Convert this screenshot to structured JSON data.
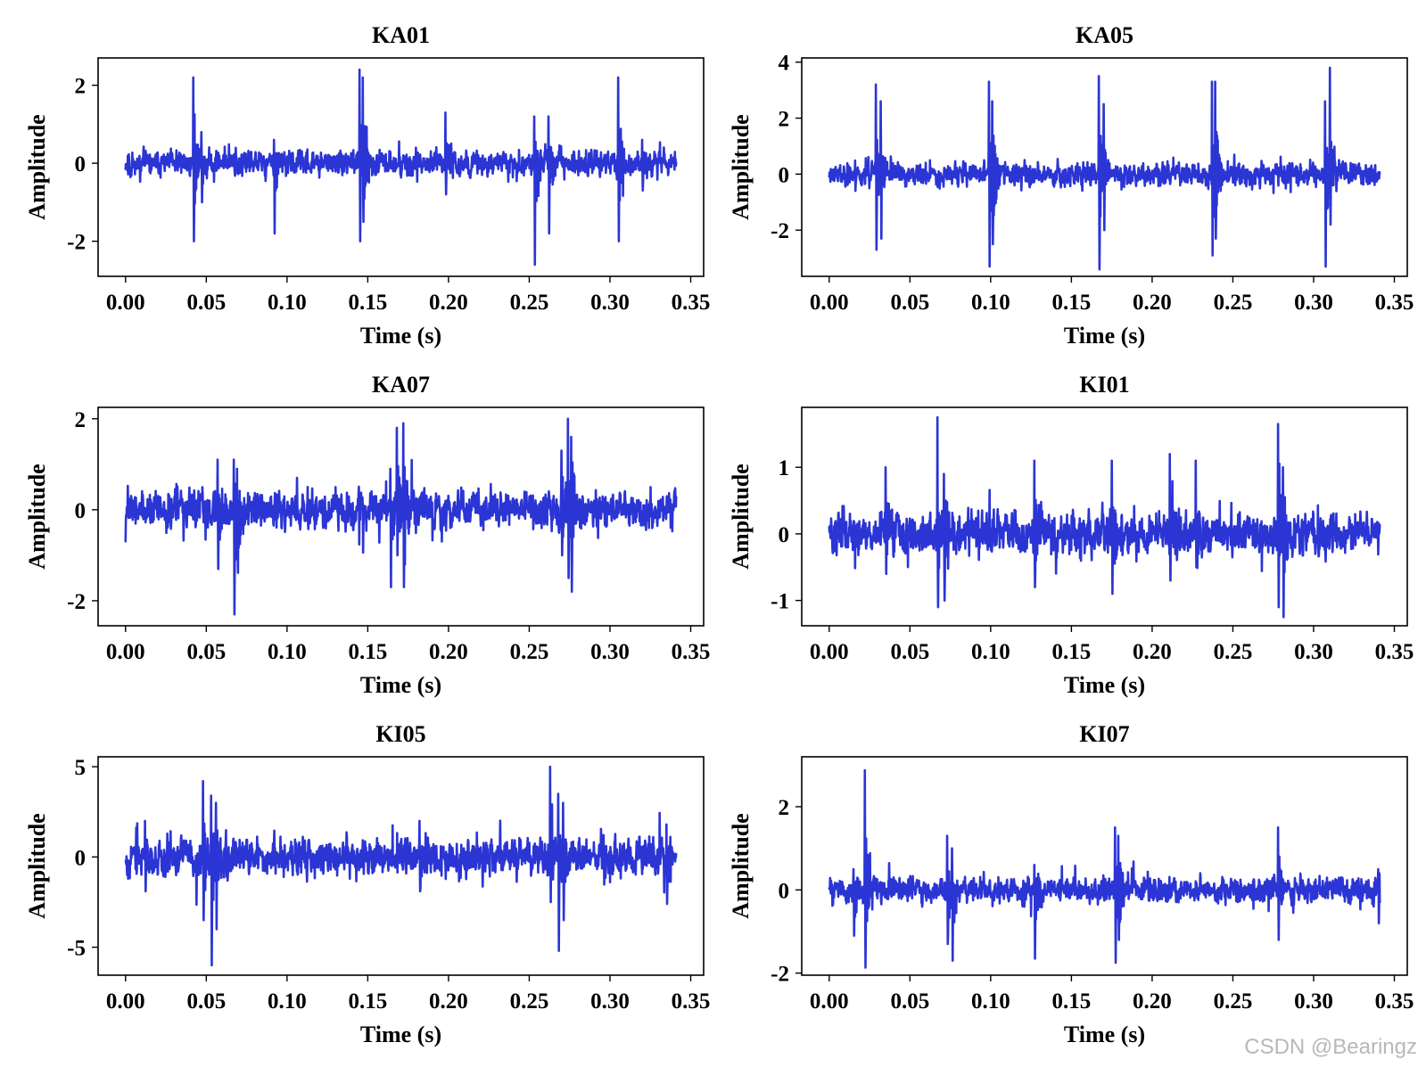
{
  "chart_data": [
    {
      "type": "line",
      "title": "KA01",
      "xlabel": "Time (s)",
      "ylabel": "Amplitude",
      "xlim": [
        -0.017,
        0.358
      ],
      "ylim": [
        -2.9,
        2.7
      ],
      "xticks": [
        0.0,
        0.05,
        0.1,
        0.15,
        0.2,
        0.25,
        0.3,
        0.35
      ],
      "xtick_labels": [
        "0.00",
        "0.05",
        "0.10",
        "0.15",
        "0.20",
        "0.25",
        "0.30",
        "0.35"
      ],
      "yticks": [
        -2,
        0,
        2
      ],
      "ytick_labels": [
        "-2",
        "0",
        "2"
      ],
      "color": "#2b35d4",
      "duration": 0.341,
      "noise": 0.17,
      "seed": 11,
      "spikes": [
        [
          0.042,
          2.2,
          -2.0
        ],
        [
          0.047,
          0.8,
          -1.0
        ],
        [
          0.092,
          0.6,
          -1.8
        ],
        [
          0.145,
          2.4,
          -2.0
        ],
        [
          0.147,
          2.2,
          -1.5
        ],
        [
          0.198,
          1.3,
          -0.8
        ],
        [
          0.253,
          1.2,
          -2.6
        ],
        [
          0.262,
          1.2,
          -1.8
        ],
        [
          0.305,
          2.2,
          -2.0
        ],
        [
          0.32,
          0.6,
          -0.7
        ]
      ]
    },
    {
      "type": "line",
      "title": "KA05",
      "xlabel": "Time (s)",
      "ylabel": "Amplitude",
      "xlim": [
        -0.017,
        0.358
      ],
      "ylim": [
        -3.65,
        4.15
      ],
      "xticks": [
        0.0,
        0.05,
        0.1,
        0.15,
        0.2,
        0.25,
        0.3,
        0.35
      ],
      "xtick_labels": [
        "0.00",
        "0.05",
        "0.10",
        "0.15",
        "0.20",
        "0.25",
        "0.30",
        "0.35"
      ],
      "yticks": [
        -2,
        0,
        2,
        4
      ],
      "ytick_labels": [
        "-2",
        "0",
        "2",
        "4"
      ],
      "color": "#2b35d4",
      "duration": 0.341,
      "noise": 0.22,
      "seed": 23,
      "spikes": [
        [
          0.029,
          3.2,
          -2.7
        ],
        [
          0.032,
          2.6,
          -2.3
        ],
        [
          0.099,
          3.3,
          -3.3
        ],
        [
          0.101,
          2.6,
          -2.5
        ],
        [
          0.167,
          3.5,
          -3.4
        ],
        [
          0.17,
          2.5,
          -2.0
        ],
        [
          0.237,
          3.3,
          -2.9
        ],
        [
          0.239,
          3.3,
          -2.3
        ],
        [
          0.307,
          2.6,
          -3.3
        ],
        [
          0.31,
          3.8,
          -1.8
        ]
      ]
    },
    {
      "type": "line",
      "title": "KA07",
      "xlabel": "Time (s)",
      "ylabel": "Amplitude",
      "xlim": [
        -0.017,
        0.358
      ],
      "ylim": [
        -2.55,
        2.25
      ],
      "xticks": [
        0.0,
        0.05,
        0.1,
        0.15,
        0.2,
        0.25,
        0.3,
        0.35
      ],
      "xtick_labels": [
        "0.00",
        "0.05",
        "0.10",
        "0.15",
        "0.20",
        "0.25",
        "0.30",
        "0.35"
      ],
      "yticks": [
        -2,
        0,
        2
      ],
      "ytick_labels": [
        "-2",
        "0",
        "2"
      ],
      "color": "#2b35d4",
      "duration": 0.341,
      "noise": 0.22,
      "seed": 37,
      "spikes": [
        [
          0.057,
          1.1,
          -1.3
        ],
        [
          0.067,
          1.1,
          -2.3
        ],
        [
          0.069,
          0.9,
          -1.0
        ],
        [
          0.164,
          0.9,
          -1.7
        ],
        [
          0.168,
          1.8,
          -1.0
        ],
        [
          0.172,
          1.9,
          -1.7
        ],
        [
          0.27,
          1.3,
          -1.0
        ],
        [
          0.274,
          2.0,
          -1.5
        ],
        [
          0.276,
          1.6,
          -1.8
        ]
      ]
    },
    {
      "type": "line",
      "title": "KI01",
      "xlabel": "Time (s)",
      "ylabel": "Amplitude",
      "xlim": [
        -0.017,
        0.358
      ],
      "ylim": [
        -1.38,
        1.9
      ],
      "xticks": [
        0.0,
        0.05,
        0.1,
        0.15,
        0.2,
        0.25,
        0.3,
        0.35
      ],
      "xtick_labels": [
        "0.00",
        "0.05",
        "0.10",
        "0.15",
        "0.20",
        "0.25",
        "0.30",
        "0.35"
      ],
      "yticks": [
        -1,
        0,
        1
      ],
      "ytick_labels": [
        "-1",
        "0",
        "1"
      ],
      "color": "#2b35d4",
      "duration": 0.341,
      "noise": 0.17,
      "seed": 51,
      "spikes": [
        [
          0.067,
          1.75,
          -1.1
        ],
        [
          0.071,
          0.9,
          -1.0
        ],
        [
          0.035,
          1.0,
          -0.6
        ],
        [
          0.175,
          1.1,
          -0.9
        ],
        [
          0.127,
          1.1,
          -0.8
        ],
        [
          0.211,
          1.2,
          -0.7
        ],
        [
          0.227,
          1.1,
          -0.5
        ],
        [
          0.278,
          1.65,
          -1.1
        ],
        [
          0.281,
          1.0,
          -1.25
        ]
      ]
    },
    {
      "type": "line",
      "title": "KI05",
      "xlabel": "Time (s)",
      "ylabel": "Amplitude",
      "xlim": [
        -0.017,
        0.358
      ],
      "ylim": [
        -6.55,
        5.55
      ],
      "xticks": [
        0.0,
        0.05,
        0.1,
        0.15,
        0.2,
        0.25,
        0.3,
        0.35
      ],
      "xtick_labels": [
        "0.00",
        "0.05",
        "0.10",
        "0.15",
        "0.20",
        "0.25",
        "0.30",
        "0.35"
      ],
      "yticks": [
        -5,
        0,
        5
      ],
      "ytick_labels": [
        "-5",
        "0",
        "5"
      ],
      "color": "#2b35d4",
      "duration": 0.341,
      "noise": 0.55,
      "seed": 67,
      "spikes": [
        [
          0.048,
          4.2,
          -3.5
        ],
        [
          0.053,
          3.4,
          -6.0
        ],
        [
          0.056,
          3.0,
          -4.0
        ],
        [
          0.263,
          5.0,
          -2.5
        ],
        [
          0.268,
          3.5,
          -5.2
        ],
        [
          0.271,
          3.0,
          -3.5
        ],
        [
          0.012,
          2.0,
          -1.9
        ],
        [
          0.182,
          2.0,
          -1.9
        ],
        [
          0.335,
          1.8,
          -2.6
        ]
      ]
    },
    {
      "type": "line",
      "title": "KI07",
      "xlabel": "Time (s)",
      "ylabel": "Amplitude",
      "xlim": [
        -0.017,
        0.358
      ],
      "ylim": [
        -2.05,
        3.2
      ],
      "xticks": [
        0.0,
        0.05,
        0.1,
        0.15,
        0.2,
        0.25,
        0.3,
        0.35
      ],
      "xtick_labels": [
        "0.00",
        "0.05",
        "0.10",
        "0.15",
        "0.20",
        "0.25",
        "0.30",
        "0.35"
      ],
      "yticks": [
        -2,
        0,
        2
      ],
      "ytick_labels": [
        "-2",
        "0",
        "2"
      ],
      "color": "#2b35d4",
      "duration": 0.341,
      "noise": 0.17,
      "seed": 83,
      "spikes": [
        [
          0.022,
          2.9,
          -1.85
        ],
        [
          0.015,
          0.5,
          -1.1
        ],
        [
          0.073,
          1.3,
          -1.3
        ],
        [
          0.076,
          1.0,
          -1.7
        ],
        [
          0.127,
          0.6,
          -1.65
        ],
        [
          0.177,
          1.5,
          -1.75
        ],
        [
          0.179,
          1.3,
          -1.2
        ],
        [
          0.278,
          1.5,
          -1.2
        ],
        [
          0.34,
          0.5,
          -0.8
        ]
      ]
    }
  ],
  "watermark": "CSDN @Bearingz"
}
